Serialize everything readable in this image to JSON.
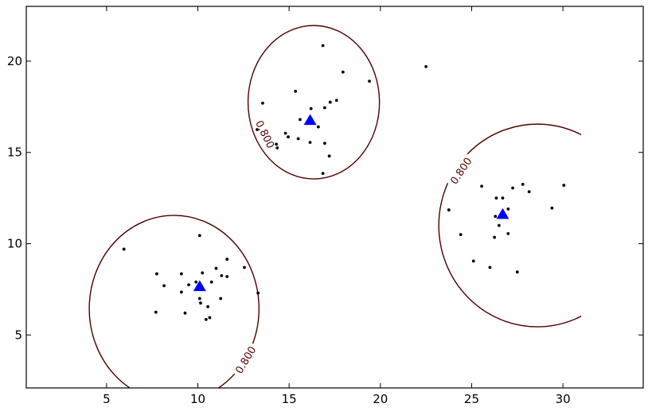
{
  "chart_data": {
    "type": "scatter",
    "title": "",
    "xlabel": "",
    "ylabel": "",
    "xlim": [
      0.6,
      34.4
    ],
    "ylim": [
      2.1,
      23.0
    ],
    "xticks": [
      5,
      10,
      15,
      20,
      25,
      30
    ],
    "yticks": [
      5,
      10,
      15,
      20
    ],
    "grid": false,
    "legend": "none",
    "colors": {
      "points": "#000000",
      "centers": "#0000ff",
      "contour": "#4b0000",
      "contour_label": "#5a0000"
    },
    "points": [
      [
        16.85,
        20.85
      ],
      [
        17.95,
        19.4
      ],
      [
        19.4,
        18.9
      ],
      [
        22.5,
        19.7
      ],
      [
        15.35,
        18.35
      ],
      [
        13.55,
        17.7
      ],
      [
        17.6,
        17.85
      ],
      [
        17.25,
        17.75
      ],
      [
        16.95,
        17.45
      ],
      [
        16.2,
        17.4
      ],
      [
        15.6,
        16.8
      ],
      [
        16.6,
        16.4
      ],
      [
        13.25,
        16.25
      ],
      [
        14.8,
        16.05
      ],
      [
        14.95,
        15.85
      ],
      [
        15.5,
        15.75
      ],
      [
        16.15,
        15.55
      ],
      [
        16.95,
        15.5
      ],
      [
        14.3,
        15.45
      ],
      [
        14.35,
        15.25
      ],
      [
        17.2,
        14.8
      ],
      [
        16.85,
        13.85
      ],
      [
        30.05,
        13.2
      ],
      [
        25.55,
        13.15
      ],
      [
        27.8,
        13.25
      ],
      [
        27.25,
        13.05
      ],
      [
        28.15,
        12.85
      ],
      [
        26.35,
        12.5
      ],
      [
        26.7,
        12.5
      ],
      [
        29.4,
        11.95
      ],
      [
        23.75,
        11.85
      ],
      [
        27.0,
        11.9
      ],
      [
        26.3,
        11.5
      ],
      [
        26.5,
        11.0
      ],
      [
        24.4,
        10.5
      ],
      [
        27.0,
        10.55
      ],
      [
        26.25,
        10.35
      ],
      [
        25.1,
        9.05
      ],
      [
        26.0,
        8.7
      ],
      [
        27.5,
        8.45
      ],
      [
        10.1,
        10.45
      ],
      [
        5.95,
        9.7
      ],
      [
        11.6,
        9.15
      ],
      [
        12.55,
        8.7
      ],
      [
        11.0,
        8.65
      ],
      [
        9.1,
        8.35
      ],
      [
        7.75,
        8.35
      ],
      [
        10.25,
        8.4
      ],
      [
        11.3,
        8.25
      ],
      [
        11.6,
        8.2
      ],
      [
        8.15,
        7.7
      ],
      [
        9.5,
        7.75
      ],
      [
        9.9,
        7.9
      ],
      [
        10.75,
        7.9
      ],
      [
        9.1,
        7.35
      ],
      [
        13.3,
        7.3
      ],
      [
        10.1,
        7.0
      ],
      [
        11.25,
        7.0
      ],
      [
        10.15,
        6.75
      ],
      [
        10.55,
        6.55
      ],
      [
        7.7,
        6.25
      ],
      [
        9.3,
        6.2
      ],
      [
        10.65,
        5.95
      ],
      [
        10.45,
        5.85
      ]
    ],
    "centers": [
      [
        16.15,
        16.75
      ],
      [
        26.7,
        11.6
      ],
      [
        10.1,
        7.65
      ]
    ],
    "contours": [
      {
        "level": 0.8,
        "cx": 16.35,
        "cy": 17.75,
        "rx": 3.6,
        "ry": 4.2,
        "clip_x": [
          12.0,
          21.0
        ],
        "clip_y": [
          11.0,
          22.0
        ],
        "label": "0.800",
        "label_at": [
          13.7,
          16.0
        ]
      },
      {
        "level": 0.8,
        "cx": 28.6,
        "cy": 11.0,
        "rx": 5.4,
        "ry": 5.55,
        "clip_x": [
          20.0,
          31.0
        ],
        "clip_y": [
          3.0,
          20.0
        ],
        "label": "0.800",
        "label_at": [
          24.4,
          14.0
        ]
      },
      {
        "level": 0.8,
        "cx": 8.7,
        "cy": 6.45,
        "rx": 4.65,
        "ry": 5.1,
        "clip_x": [
          4.0,
          20.0
        ],
        "clip_y": [
          2.1,
          20.0
        ],
        "label": "0.800",
        "label_at": [
          12.6,
          3.65
        ]
      }
    ]
  }
}
